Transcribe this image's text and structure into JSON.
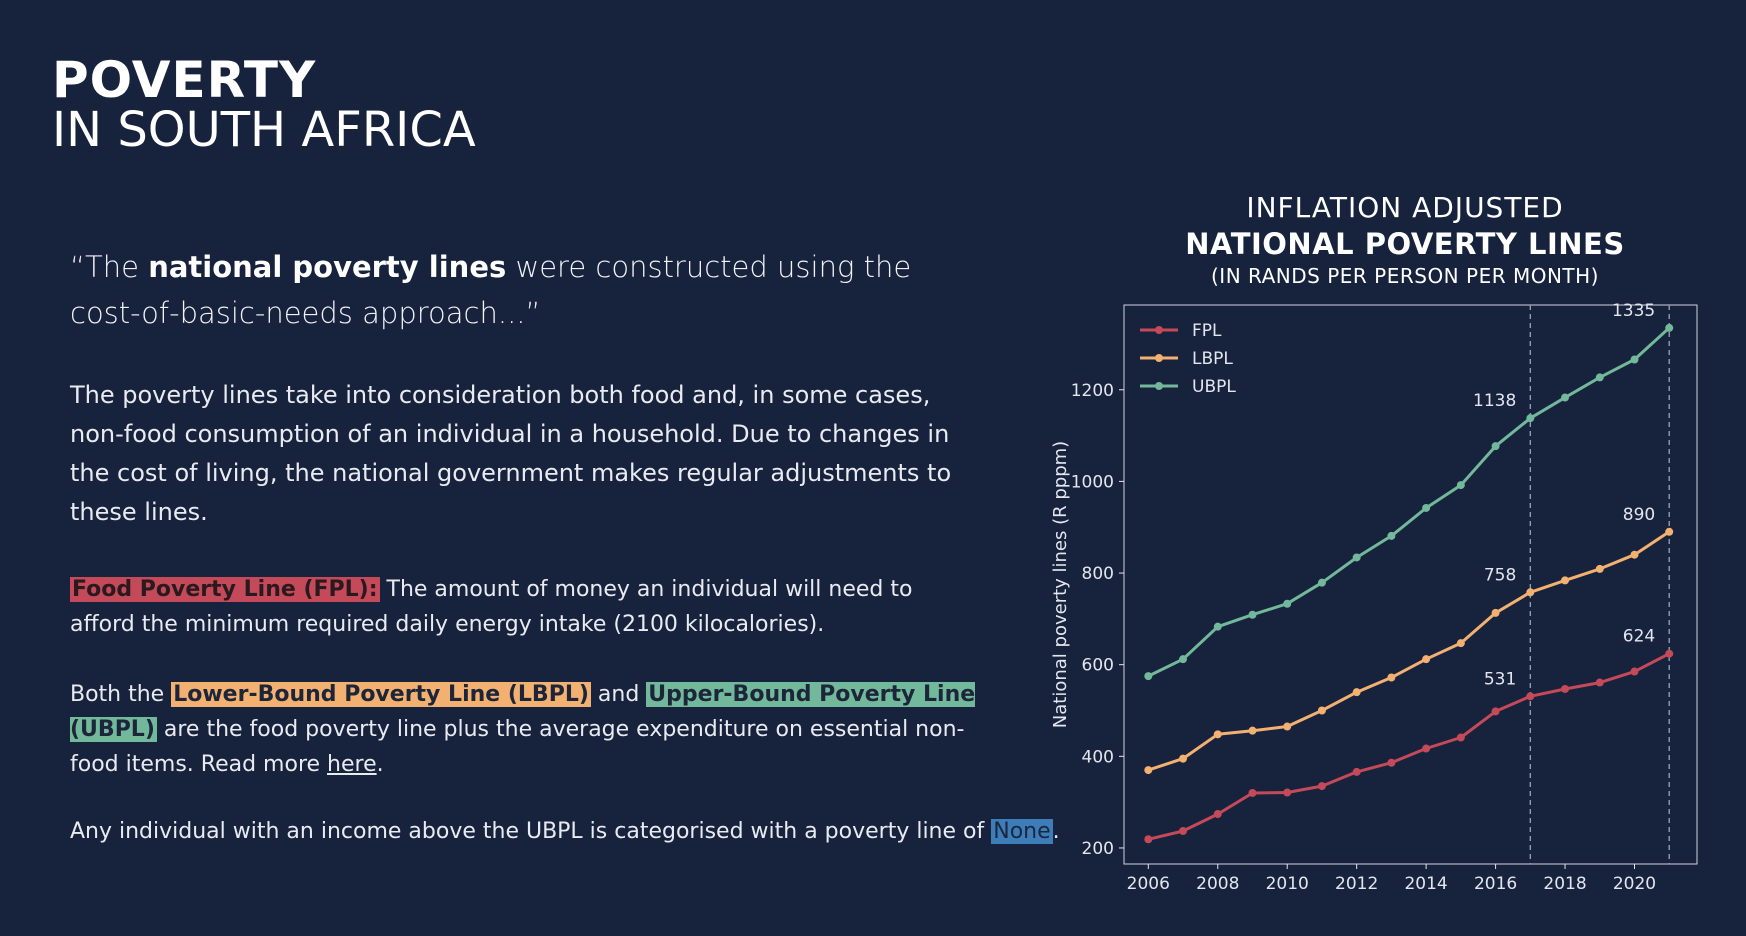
{
  "header": {
    "title_line1": "POVERTY",
    "title_line2": "IN SOUTH AFRICA"
  },
  "quote": {
    "open": "“The ",
    "bold": "national poverty lines",
    "rest": " were constructed using the cost-of-basic-needs approach...”"
  },
  "intro": "The poverty lines take into consideration both food and, in some cases, non-food consumption of an individual in a household. Due to changes in the cost of living, the national government makes regular adjustments to these lines.",
  "fpl_definition": {
    "label": "Food Poverty Line (FPL):",
    "text": " The amount of money an individual will need to afford the minimum required daily energy intake (2100 kilocalories)."
  },
  "bounds_definition": {
    "prefix": "Both the ",
    "lbpl_label": "Lower-Bound Poverty Line (LBPL)",
    "and": " and ",
    "ubpl_label": "Upper-Bound Poverty Line (UBPL)",
    "text": " are the food poverty line plus the average expenditure on essential non-food items. Read more ",
    "link_label": "here",
    "suffix": "."
  },
  "category_note": {
    "text": "Any individual with an income above the UBPL is categorised with a poverty line of ",
    "value": "None",
    "suffix": "."
  },
  "colors": {
    "background": "#17223d",
    "fpl": "#c44a59",
    "lbpl": "#f2b170",
    "ubpl": "#72b89a",
    "none": "#3d7db8"
  },
  "chart_data": {
    "type": "line",
    "title_line1": "INFLATION ADJUSTED",
    "title_line2": "NATIONAL POVERTY LINES",
    "title_line3": "(IN RANDS PER PERSON PER MONTH)",
    "xlabel": "",
    "ylabel": "National poverty lines (R pppm)",
    "x": [
      2006,
      2007,
      2008,
      2009,
      2010,
      2011,
      2012,
      2013,
      2014,
      2015,
      2016,
      2017,
      2018,
      2019,
      2020,
      2021
    ],
    "xticks": [
      2006,
      2008,
      2010,
      2012,
      2014,
      2016,
      2018,
      2020
    ],
    "yticks": [
      200,
      400,
      600,
      800,
      1000,
      1200
    ],
    "xlim": [
      2005.3,
      2021.8
    ],
    "ylim": [
      165,
      1385
    ],
    "legend_position": "top-left",
    "vlines": [
      2017,
      2021
    ],
    "series": [
      {
        "name": "FPL",
        "color": "#c44a59",
        "values": [
          219,
          237,
          274,
          320,
          321,
          335,
          366,
          386,
          417,
          441,
          498,
          531,
          547,
          561,
          585,
          624
        ]
      },
      {
        "name": "LBPL",
        "color": "#f2b170",
        "values": [
          370,
          395,
          448,
          456,
          465,
          500,
          540,
          572,
          612,
          647,
          713,
          758,
          784,
          809,
          840,
          890
        ]
      },
      {
        "name": "UBPL",
        "color": "#72b89a",
        "values": [
          575,
          612,
          683,
          709,
          733,
          779,
          834,
          881,
          942,
          992,
          1077,
          1138,
          1183,
          1227,
          1266,
          1335
        ]
      }
    ],
    "annotations": [
      {
        "series": "FPL",
        "x": 2017,
        "label": "531"
      },
      {
        "series": "FPL",
        "x": 2021,
        "label": "624"
      },
      {
        "series": "LBPL",
        "x": 2017,
        "label": "758"
      },
      {
        "series": "LBPL",
        "x": 2021,
        "label": "890"
      },
      {
        "series": "UBPL",
        "x": 2017,
        "label": "1138"
      },
      {
        "series": "UBPL",
        "x": 2021,
        "label": "1335"
      }
    ]
  }
}
